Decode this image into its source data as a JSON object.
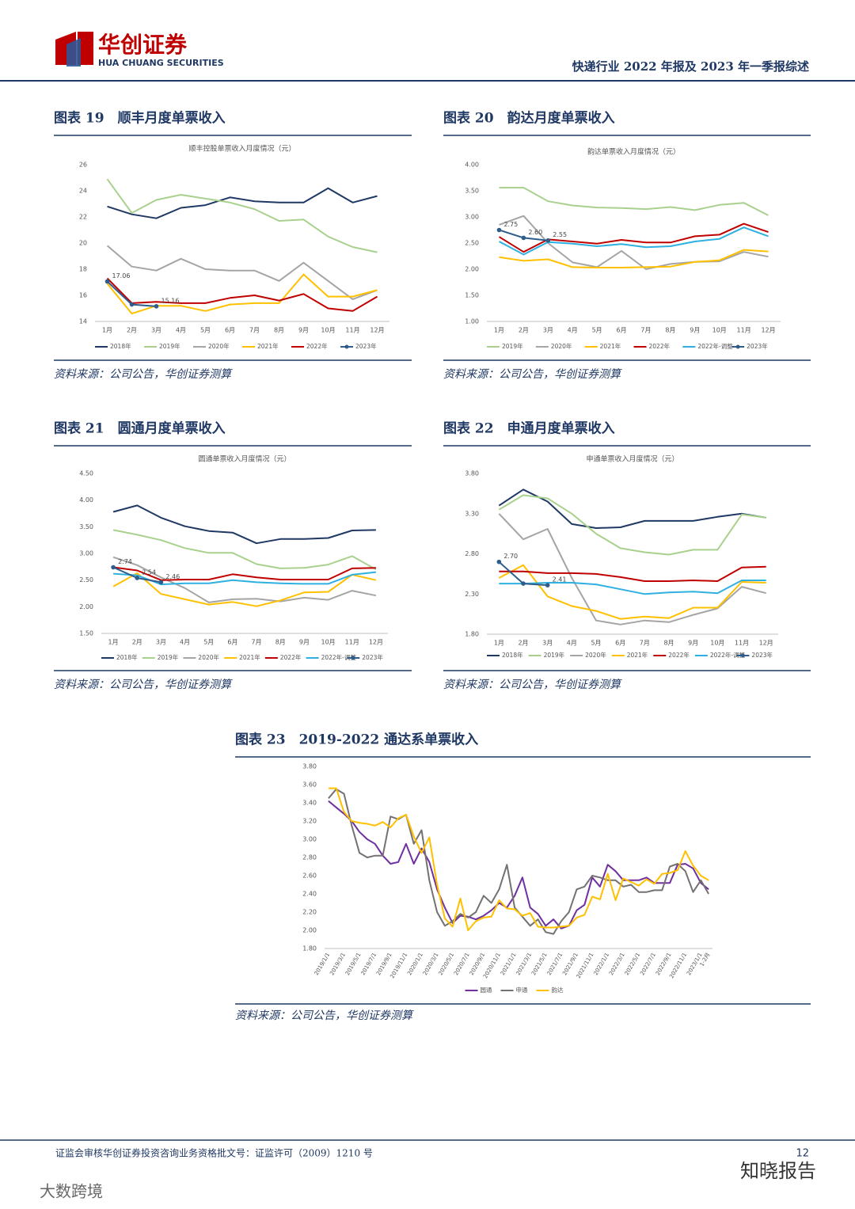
{
  "header": {
    "logo_cn": "华创证券",
    "logo_en": "HUA CHUANG SECURITIES",
    "report_title": "快递行业 2022 年报及 2023 年一季报综述"
  },
  "figures": [
    {
      "caption": "图表 19　顺丰月度单票收入",
      "source": "资料来源：公司公告，华创证券测算"
    },
    {
      "caption": "图表 20　韵达月度单票收入",
      "source": "资料来源：公司公告，华创证券测算"
    },
    {
      "caption": "图表 21　圆通月度单票收入",
      "source": "资料来源：公司公告，华创证券测算"
    },
    {
      "caption": "图表 22　申通月度单票收入",
      "source": "资料来源：公司公告，华创证券测算"
    },
    {
      "caption": "图表 23　2019-2022 通达系单票收入",
      "source": "资料来源：公司公告，华创证券测算"
    }
  ],
  "chart_data": [
    {
      "type": "line",
      "title": "顺丰控股单票收入月度情况（元）",
      "categories": [
        "1月",
        "2月",
        "3月",
        "4月",
        "5月",
        "6月",
        "7月",
        "8月",
        "9月",
        "10月",
        "11月",
        "12月"
      ],
      "ylim": [
        14,
        26
      ],
      "yticks": [
        14,
        16,
        18,
        20,
        22,
        24,
        26
      ],
      "grid": false,
      "series": [
        {
          "name": "2018年",
          "color": "#1f3864",
          "values": [
            22.8,
            22.2,
            21.9,
            22.7,
            22.9,
            23.5,
            23.2,
            23.1,
            23.1,
            24.2,
            23.1,
            23.6
          ]
        },
        {
          "name": "2019年",
          "color": "#a9d18e",
          "values": [
            24.9,
            22.3,
            23.3,
            23.7,
            23.4,
            23.1,
            22.6,
            21.7,
            21.8,
            20.5,
            19.7,
            19.3
          ]
        },
        {
          "name": "2020年",
          "color": "#a5a5a5",
          "values": [
            19.8,
            18.2,
            17.9,
            18.8,
            18.0,
            17.9,
            17.9,
            17.1,
            18.5,
            17.1,
            15.7,
            16.4
          ]
        },
        {
          "name": "2021年",
          "color": "#ffc000",
          "values": [
            16.9,
            14.6,
            15.2,
            15.2,
            14.8,
            15.3,
            15.4,
            15.4,
            17.6,
            15.9,
            15.9,
            16.4
          ]
        },
        {
          "name": "2022年",
          "color": "#c00000",
          "values": [
            17.3,
            15.4,
            15.5,
            15.4,
            15.4,
            15.8,
            16.0,
            15.6,
            16.1,
            15.0,
            14.8,
            15.9
          ]
        },
        {
          "name": "2023年",
          "color": "#2e5d8c",
          "markers": true,
          "values": [
            17.06,
            15.3,
            15.16,
            null,
            null,
            null,
            null,
            null,
            null,
            null,
            null,
            null
          ],
          "value_labels": [
            "17.06",
            null,
            "15.16",
            null,
            null,
            null,
            null,
            null,
            null,
            null,
            null,
            null
          ]
        }
      ]
    },
    {
      "type": "line",
      "title": "韵达单票收入月度情况（元）",
      "categories": [
        "1月",
        "2月",
        "3月",
        "4月",
        "5月",
        "6月",
        "7月",
        "8月",
        "9月",
        "10月",
        "11月",
        "12月"
      ],
      "ylim": [
        1,
        4
      ],
      "yticks": [
        {
          "value": 1,
          "label": "1.00"
        },
        {
          "value": 1.5,
          "label": "1.50"
        },
        {
          "value": 2,
          "label": "2.00"
        },
        {
          "value": 2.5,
          "label": "2.50"
        },
        {
          "value": 3,
          "label": "3.00"
        },
        {
          "value": 3.5,
          "label": "3.50"
        },
        {
          "value": 4,
          "label": "4.00"
        }
      ],
      "grid": false,
      "series": [
        {
          "name": "2019年",
          "color": "#a9d18e",
          "values": [
            3.56,
            3.56,
            3.3,
            3.22,
            3.18,
            3.17,
            3.15,
            3.19,
            3.13,
            3.23,
            3.27,
            3.03
          ]
        },
        {
          "name": "2020年",
          "color": "#a5a5a5",
          "values": [
            2.85,
            3.02,
            2.5,
            2.13,
            2.04,
            2.35,
            2.0,
            2.1,
            2.14,
            2.15,
            2.33,
            2.24
          ]
        },
        {
          "name": "2021年",
          "color": "#ffc000",
          "values": [
            2.23,
            2.16,
            2.19,
            2.04,
            2.03,
            2.03,
            2.04,
            2.05,
            2.14,
            2.17,
            2.37,
            2.34
          ]
        },
        {
          "name": "2022年",
          "color": "#c00000",
          "values": [
            2.62,
            2.33,
            2.57,
            2.53,
            2.49,
            2.56,
            2.51,
            2.51,
            2.63,
            2.66,
            2.87,
            2.71
          ]
        },
        {
          "name": "2022年-调整",
          "color": "#2eb0e0",
          "values": [
            2.53,
            2.28,
            2.52,
            2.49,
            2.44,
            2.48,
            2.42,
            2.44,
            2.53,
            2.58,
            2.8,
            2.63
          ]
        },
        {
          "name": "2023年",
          "color": "#2e5d8c",
          "markers": true,
          "values": [
            2.75,
            2.6,
            2.55,
            null,
            null,
            null,
            null,
            null,
            null,
            null,
            null,
            null
          ],
          "value_labels": [
            "2.75",
            "2.60",
            "2.55",
            null,
            null,
            null,
            null,
            null,
            null,
            null,
            null,
            null
          ]
        }
      ]
    },
    {
      "type": "line",
      "title": "圆通单票收入月度情况（元）",
      "categories": [
        "1月",
        "2月",
        "3月",
        "4月",
        "5月",
        "6月",
        "7月",
        "8月",
        "9月",
        "10月",
        "11月",
        "12月"
      ],
      "ylim": [
        1.5,
        4.5
      ],
      "yticks": [
        {
          "value": 1.5,
          "label": "1.50"
        },
        {
          "value": 2,
          "label": "2.00"
        },
        {
          "value": 2.5,
          "label": "2.50"
        },
        {
          "value": 3,
          "label": "3.00"
        },
        {
          "value": 3.5,
          "label": "3.50"
        },
        {
          "value": 4,
          "label": "4.00"
        },
        {
          "value": 4.5,
          "label": "4.50"
        }
      ],
      "grid": false,
      "series": [
        {
          "name": "2018年",
          "color": "#1f3864",
          "values": [
            3.78,
            3.9,
            3.67,
            3.51,
            3.42,
            3.39,
            3.19,
            3.27,
            3.27,
            3.29,
            3.43,
            3.44
          ]
        },
        {
          "name": "2019年",
          "color": "#a9d18e",
          "values": [
            3.44,
            3.35,
            3.25,
            3.1,
            3.01,
            3.01,
            2.8,
            2.72,
            2.73,
            2.79,
            2.95,
            2.7
          ]
        },
        {
          "name": "2020年",
          "color": "#a5a5a5",
          "values": [
            2.93,
            2.78,
            2.55,
            2.35,
            2.08,
            2.14,
            2.15,
            2.1,
            2.17,
            2.13,
            2.3,
            2.21
          ]
        },
        {
          "name": "2021年",
          "color": "#ffc000",
          "values": [
            2.38,
            2.63,
            2.24,
            2.14,
            2.04,
            2.09,
            2.01,
            2.12,
            2.27,
            2.28,
            2.6,
            2.5
          ]
        },
        {
          "name": "2022年",
          "color": "#c00000",
          "values": [
            2.74,
            2.68,
            2.5,
            2.51,
            2.51,
            2.61,
            2.55,
            2.51,
            2.51,
            2.51,
            2.72,
            2.73
          ]
        },
        {
          "name": "2022年-调整",
          "color": "#2eb0e0",
          "values": [
            2.62,
            2.59,
            2.42,
            2.44,
            2.44,
            2.5,
            2.46,
            2.44,
            2.43,
            2.43,
            2.6,
            2.65
          ]
        },
        {
          "name": "2023年",
          "color": "#2e5d8c",
          "markers": true,
          "values": [
            2.74,
            2.54,
            2.46,
            null,
            null,
            null,
            null,
            null,
            null,
            null,
            null,
            null
          ],
          "value_labels": [
            "2.74",
            "2.54",
            "2.46",
            null,
            null,
            null,
            null,
            null,
            null,
            null,
            null,
            null
          ]
        }
      ]
    },
    {
      "type": "line",
      "title": "申通单票收入月度情况（元）",
      "categories": [
        "1月",
        "2月",
        "3月",
        "4月",
        "5月",
        "6月",
        "7月",
        "8月",
        "9月",
        "10月",
        "11月",
        "12月"
      ],
      "ylim": [
        1.8,
        3.8
      ],
      "yticks": [
        {
          "value": 1.8,
          "label": "1.80"
        },
        {
          "value": 2.3,
          "label": "2.30"
        },
        {
          "value": 2.8,
          "label": "2.80"
        },
        {
          "value": 3.3,
          "label": "3.30"
        },
        {
          "value": 3.8,
          "label": "3.80"
        }
      ],
      "grid": false,
      "series": [
        {
          "name": "2018年",
          "color": "#1f3864",
          "values": [
            3.4,
            3.6,
            3.45,
            3.17,
            3.12,
            3.13,
            3.21,
            3.21,
            3.21,
            3.26,
            3.3,
            3.25
          ]
        },
        {
          "name": "2019年",
          "color": "#a9d18e",
          "values": [
            3.35,
            3.53,
            3.49,
            3.3,
            3.05,
            2.87,
            2.82,
            2.79,
            2.85,
            2.85,
            3.29,
            3.25
          ]
        },
        {
          "name": "2020年",
          "color": "#a5a5a5",
          "values": [
            3.3,
            2.98,
            3.11,
            2.5,
            1.97,
            1.92,
            1.97,
            1.95,
            2.04,
            2.12,
            2.39,
            2.31
          ]
        },
        {
          "name": "2021年",
          "color": "#ffc000",
          "values": [
            2.5,
            2.66,
            2.27,
            2.15,
            2.09,
            1.99,
            2.02,
            2.0,
            2.13,
            2.13,
            2.45,
            2.44
          ]
        },
        {
          "name": "2022年",
          "color": "#c00000",
          "values": [
            2.58,
            2.58,
            2.56,
            2.56,
            2.55,
            2.51,
            2.46,
            2.46,
            2.47,
            2.46,
            2.63,
            2.64
          ]
        },
        {
          "name": "2022年-调整",
          "color": "#2eb0e0",
          "values": [
            2.43,
            2.43,
            2.44,
            2.44,
            2.42,
            2.36,
            2.3,
            2.32,
            2.33,
            2.31,
            2.47,
            2.47
          ]
        },
        {
          "name": "2023年",
          "color": "#2e5d8c",
          "markers": true,
          "values": [
            2.7,
            2.43,
            2.41,
            null,
            null,
            null,
            null,
            null,
            null,
            null,
            null,
            null
          ],
          "value_labels": [
            "2.70",
            null,
            "2.41",
            null,
            null,
            null,
            null,
            null,
            null,
            null,
            null,
            null
          ]
        }
      ]
    },
    {
      "type": "line",
      "rotate_labels": true,
      "categories": [
        "2019/1/1",
        null,
        "2019/3/1",
        null,
        "2019/5/1",
        null,
        "2019/7/1",
        null,
        "2019/9/1",
        null,
        "2019/11/1",
        null,
        "2020/1/1",
        null,
        "2020/3/1",
        null,
        "2020/5/1",
        null,
        "2020/7/1",
        null,
        "2020/9/1",
        null,
        "2020/11/1",
        null,
        "2021/1/1",
        null,
        "2021/3/1",
        null,
        "2021/5/1",
        null,
        "2021/7/1",
        null,
        "2021/9/1",
        null,
        "2021/11/1",
        null,
        "2022/1/1",
        null,
        "2022/3/1",
        null,
        "2022/5/1",
        null,
        "2022/7/1",
        null,
        "2022/9/1",
        null,
        "2022/11/1",
        null,
        "2023/1/1",
        "1-2月"
      ],
      "ylim": [
        1.8,
        3.8
      ],
      "yticks": [
        {
          "value": 1.8,
          "label": "1.80"
        },
        {
          "value": 2,
          "label": "2.00"
        },
        {
          "value": 2.2,
          "label": "2.20"
        },
        {
          "value": 2.4,
          "label": "2.40"
        },
        {
          "value": 2.6,
          "label": "2.60"
        },
        {
          "value": 2.8,
          "label": "2.80"
        },
        {
          "value": 3,
          "label": "3.00"
        },
        {
          "value": 3.2,
          "label": "3.20"
        },
        {
          "value": 3.4,
          "label": "3.40"
        },
        {
          "value": 3.6,
          "label": "3.60"
        },
        {
          "value": 3.8,
          "label": "3.80"
        }
      ],
      "grid": false,
      "series": [
        {
          "name": "圆通",
          "color": "#7030a0",
          "values": [
            3.42,
            3.35,
            3.28,
            3.2,
            3.08,
            3.0,
            2.95,
            2.82,
            2.73,
            2.75,
            2.95,
            2.73,
            2.9,
            2.75,
            2.45,
            2.25,
            2.08,
            2.16,
            2.15,
            2.12,
            2.16,
            2.22,
            2.3,
            2.25,
            2.38,
            2.58,
            2.25,
            2.18,
            2.05,
            2.12,
            2.02,
            2.05,
            2.22,
            2.28,
            2.58,
            2.48,
            2.72,
            2.65,
            2.55,
            2.55,
            2.55,
            2.58,
            2.52,
            2.52,
            2.52,
            2.72,
            2.73,
            2.68,
            2.52,
            2.45
          ]
        },
        {
          "name": "申通",
          "color": "#767171",
          "values": [
            3.45,
            3.55,
            3.5,
            3.15,
            2.85,
            2.8,
            2.82,
            2.82,
            3.25,
            3.22,
            3.27,
            2.95,
            3.1,
            2.55,
            2.2,
            2.05,
            2.1,
            2.18,
            2.14,
            2.2,
            2.38,
            2.3,
            2.45,
            2.72,
            2.25,
            2.15,
            2.05,
            2.12,
            1.98,
            1.96,
            2.1,
            2.2,
            2.45,
            2.48,
            2.6,
            2.58,
            2.55,
            2.55,
            2.48,
            2.5,
            2.42,
            2.42,
            2.44,
            2.44,
            2.7,
            2.73,
            2.65,
            2.42,
            2.55,
            2.4
          ]
        },
        {
          "name": "韵达",
          "color": "#ffc000",
          "values": [
            3.56,
            3.56,
            3.3,
            3.2,
            3.18,
            3.17,
            3.15,
            3.19,
            3.13,
            3.23,
            3.27,
            3.03,
            2.85,
            3.02,
            2.5,
            2.13,
            2.04,
            2.35,
            2.0,
            2.1,
            2.14,
            2.15,
            2.33,
            2.24,
            2.23,
            2.16,
            2.19,
            2.04,
            2.03,
            2.03,
            2.04,
            2.05,
            2.14,
            2.17,
            2.37,
            2.34,
            2.62,
            2.33,
            2.57,
            2.53,
            2.49,
            2.56,
            2.51,
            2.62,
            2.63,
            2.66,
            2.87,
            2.71,
            2.6,
            2.55
          ]
        }
      ]
    }
  ],
  "footer": {
    "license": "证监会审核华创证券投资咨询业务资格批文号：证监许可（2009）1210 号",
    "page": "12"
  },
  "watermarks": [
    "知晓报告",
    "大数跨境"
  ]
}
